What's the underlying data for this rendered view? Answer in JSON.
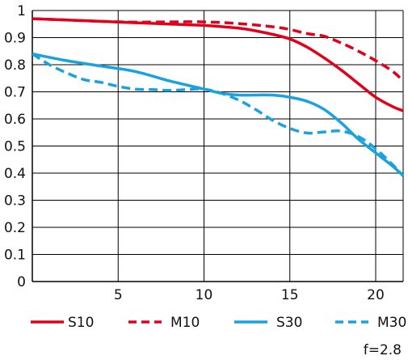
{
  "chart_data": {
    "type": "line",
    "title": "",
    "xlabel": "",
    "ylabel": "",
    "xlim": [
      0,
      21.6
    ],
    "ylim": [
      0,
      1
    ],
    "x_ticks": [
      {
        "value": 5,
        "label": "5"
      },
      {
        "value": 10,
        "label": "10"
      },
      {
        "value": 15,
        "label": "15"
      },
      {
        "value": 20,
        "label": "20"
      }
    ],
    "y_ticks": [
      {
        "value": 0,
        "label": "0"
      },
      {
        "value": 0.1,
        "label": "0.1"
      },
      {
        "value": 0.2,
        "label": "0.2"
      },
      {
        "value": 0.3,
        "label": "0.3"
      },
      {
        "value": 0.4,
        "label": "0.4"
      },
      {
        "value": 0.5,
        "label": "0.5"
      },
      {
        "value": 0.6,
        "label": "0.6"
      },
      {
        "value": 0.7,
        "label": "0.7"
      },
      {
        "value": 0.8,
        "label": "0.8"
      },
      {
        "value": 0.9,
        "label": "0.9"
      },
      {
        "value": 1,
        "label": "1"
      }
    ],
    "grid": true,
    "legend_position": "bottom",
    "series": [
      {
        "name": "S10",
        "color": "#e3001b",
        "dash": "solid",
        "points": [
          [
            0,
            0.97
          ],
          [
            2,
            0.965
          ],
          [
            4,
            0.96
          ],
          [
            6,
            0.955
          ],
          [
            8,
            0.95
          ],
          [
            10,
            0.945
          ],
          [
            12,
            0.935
          ],
          [
            13,
            0.925
          ],
          [
            14,
            0.912
          ],
          [
            15,
            0.895
          ],
          [
            16,
            0.865
          ],
          [
            17,
            0.825
          ],
          [
            18,
            0.78
          ],
          [
            19,
            0.73
          ],
          [
            20,
            0.68
          ],
          [
            21,
            0.645
          ],
          [
            21.6,
            0.63
          ]
        ]
      },
      {
        "name": "M10",
        "color": "#e3001b",
        "dash": "dashed",
        "points": [
          [
            0,
            0.97
          ],
          [
            2,
            0.965
          ],
          [
            4,
            0.96
          ],
          [
            6,
            0.957
          ],
          [
            8,
            0.958
          ],
          [
            10,
            0.958
          ],
          [
            12,
            0.952
          ],
          [
            14,
            0.94
          ],
          [
            15,
            0.93
          ],
          [
            16,
            0.915
          ],
          [
            17,
            0.905
          ],
          [
            18,
            0.88
          ],
          [
            19,
            0.85
          ],
          [
            20,
            0.815
          ],
          [
            21,
            0.775
          ],
          [
            21.6,
            0.74
          ]
        ]
      },
      {
        "name": "S30",
        "color": "#1aa1e0",
        "dash": "solid",
        "points": [
          [
            0,
            0.84
          ],
          [
            2,
            0.815
          ],
          [
            4,
            0.795
          ],
          [
            6,
            0.775
          ],
          [
            8,
            0.74
          ],
          [
            10,
            0.71
          ],
          [
            11,
            0.695
          ],
          [
            12,
            0.688
          ],
          [
            13,
            0.688
          ],
          [
            14,
            0.688
          ],
          [
            15,
            0.68
          ],
          [
            16,
            0.665
          ],
          [
            17,
            0.635
          ],
          [
            18,
            0.585
          ],
          [
            19,
            0.525
          ],
          [
            20,
            0.475
          ],
          [
            21,
            0.425
          ],
          [
            21.6,
            0.39
          ]
        ]
      },
      {
        "name": "M30",
        "color": "#1aa1e0",
        "dash": "dashed",
        "points": [
          [
            0,
            0.84
          ],
          [
            1,
            0.8
          ],
          [
            2,
            0.77
          ],
          [
            3,
            0.745
          ],
          [
            4,
            0.735
          ],
          [
            5,
            0.72
          ],
          [
            6,
            0.71
          ],
          [
            7,
            0.708
          ],
          [
            8,
            0.705
          ],
          [
            9,
            0.708
          ],
          [
            10,
            0.71
          ],
          [
            11,
            0.695
          ],
          [
            12,
            0.67
          ],
          [
            13,
            0.635
          ],
          [
            14,
            0.595
          ],
          [
            15,
            0.565
          ],
          [
            16,
            0.548
          ],
          [
            17,
            0.552
          ],
          [
            18,
            0.555
          ],
          [
            19,
            0.535
          ],
          [
            20,
            0.49
          ],
          [
            21,
            0.43
          ],
          [
            21.6,
            0.39
          ]
        ]
      }
    ]
  },
  "footnote": "f=2.8"
}
